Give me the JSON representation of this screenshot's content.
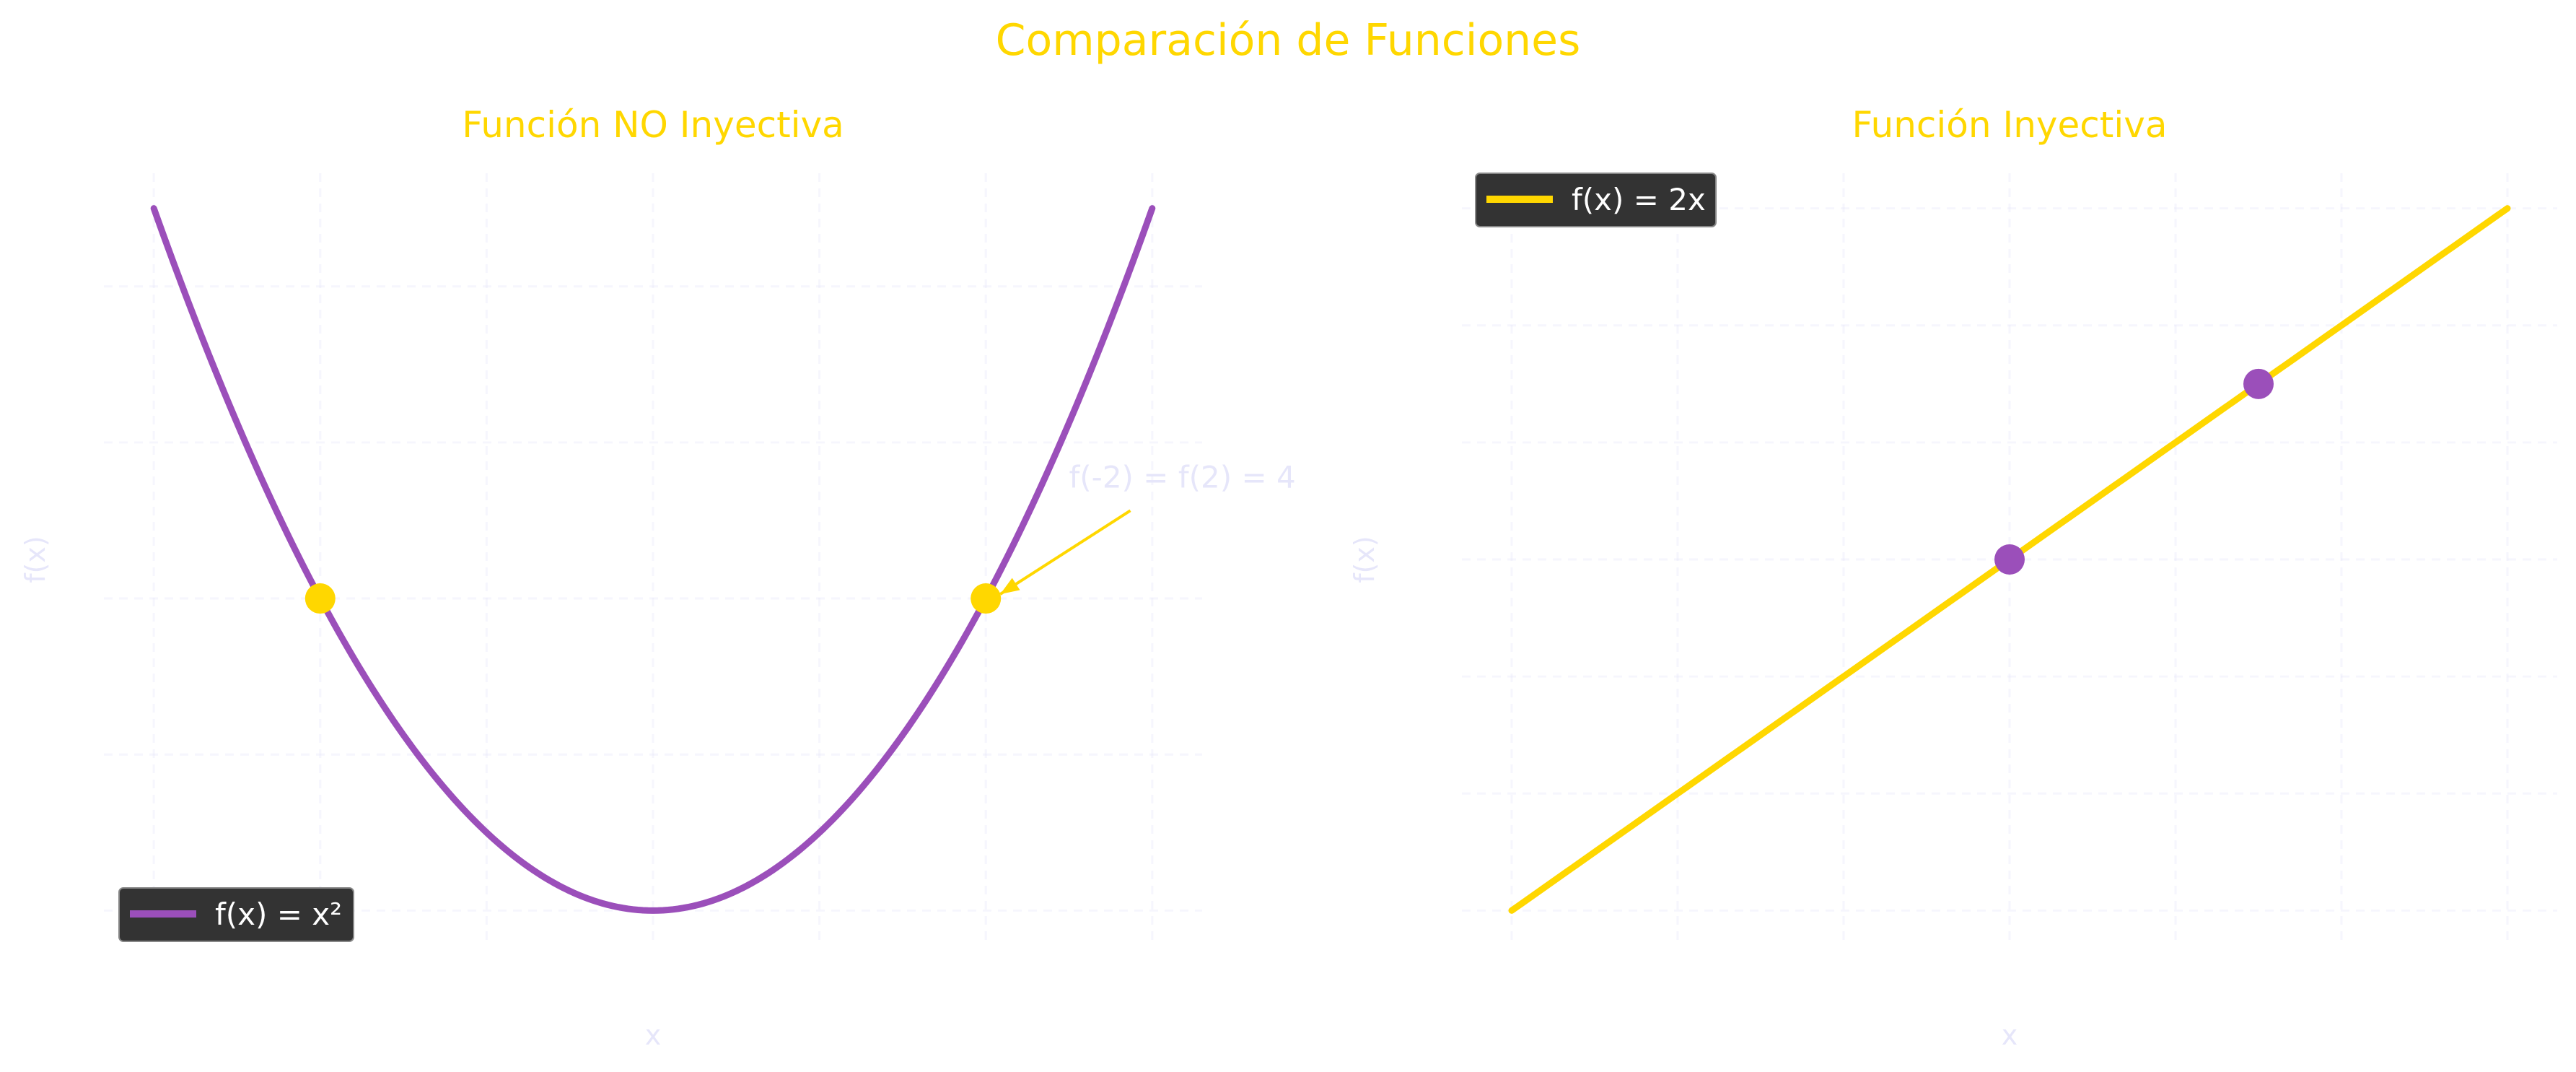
{
  "title": "Comparación de Funciones",
  "colors": {
    "title": "#FFD700",
    "purple": "#9B4FBA",
    "yellow": "#FFD700",
    "label": "#E6E6FA",
    "legend_bg": "#333333"
  },
  "chart_data": [
    {
      "type": "line",
      "title": "Función NO Inyectiva",
      "xlabel": "x",
      "ylabel": "f(x)",
      "xlim": [
        -3.3,
        3.3
      ],
      "ylim": [
        -0.45,
        9.45
      ],
      "grid": true,
      "series": [
        {
          "name": "f(x) = x²",
          "function": "x^2",
          "x_range": [
            -3,
            3
          ],
          "color": "#9B4FBA"
        }
      ],
      "points": [
        {
          "x": -2,
          "y": 4,
          "color": "#FFD700"
        },
        {
          "x": 2,
          "y": 4,
          "color": "#FFD700"
        }
      ],
      "annotation": {
        "text": "f(-2) = f(2) = 4",
        "x": 2,
        "y": 4,
        "text_x": 2.5,
        "text_y": 5.2
      },
      "legend": "lower-left"
    },
    {
      "type": "line",
      "title": "Función Inyectiva",
      "xlabel": "x",
      "ylabel": "f(x)",
      "xlim": [
        -3.3,
        3.3
      ],
      "ylim": [
        -6.6,
        6.6
      ],
      "grid": true,
      "series": [
        {
          "name": "f(x) = 2x",
          "function": "2*x",
          "x_range": [
            -3,
            3
          ],
          "color": "#FFD700"
        }
      ],
      "points": [
        {
          "x": 0,
          "y": 0,
          "color": "#9B4FBA"
        },
        {
          "x": 1.5,
          "y": 3,
          "color": "#9B4FBA"
        }
      ],
      "legend": "upper-left"
    }
  ]
}
